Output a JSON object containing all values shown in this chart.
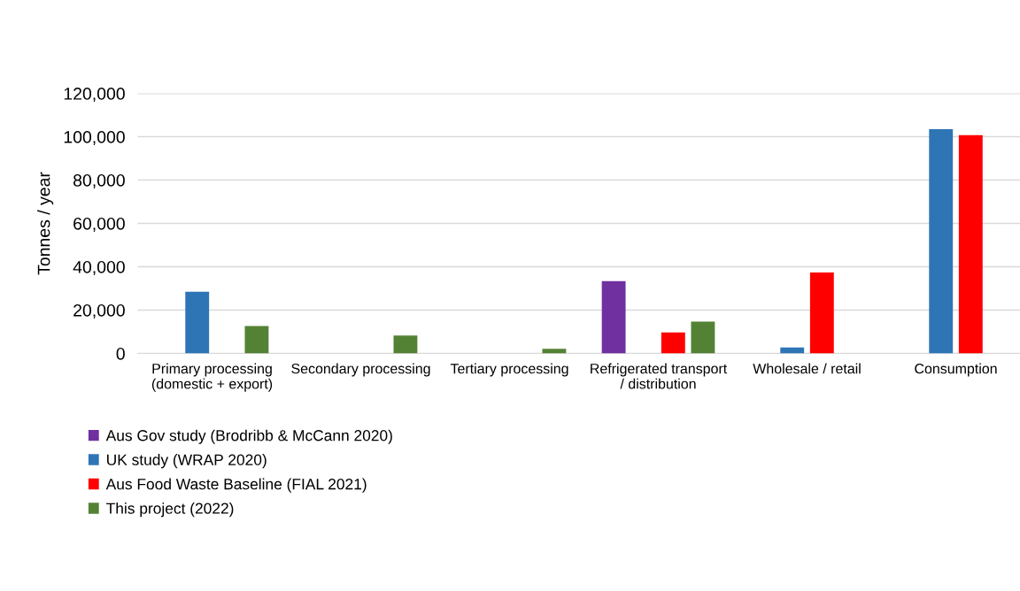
{
  "chart_data": {
    "type": "bar",
    "ylabel": "Tonnes / year",
    "categories": [
      "Primary processing\n(domestic + export)",
      "Secondary processing",
      "Tertiary processing",
      "Refrigerated transport\n/ distribution",
      "Wholesale / retail",
      "Consumption"
    ],
    "series": [
      {
        "name": "Aus Gov study (Brodribb & McCann 2020)",
        "color": "#7030a0",
        "values": [
          null,
          null,
          null,
          33400,
          null,
          null
        ]
      },
      {
        "name": "UK study (WRAP 2020)",
        "color": "#2e75b6",
        "values": [
          28500,
          null,
          null,
          null,
          2700,
          103500
        ]
      },
      {
        "name": "Aus Food Waste Baseline (FIAL 2021)",
        "color": "#ff0000",
        "values": [
          null,
          null,
          null,
          9700,
          37300,
          100700
        ]
      },
      {
        "name": "This project (2022)",
        "color": "#548235",
        "values": [
          12600,
          8300,
          2100,
          14700,
          null,
          null
        ]
      }
    ],
    "ylim": [
      0,
      120000
    ],
    "yticks": [
      {
        "value": 0,
        "label": "0"
      },
      {
        "value": 20000,
        "label": "20,000"
      },
      {
        "value": 40000,
        "label": "40,000"
      },
      {
        "value": 60000,
        "label": "60,000"
      },
      {
        "value": 80000,
        "label": "80,000"
      },
      {
        "value": 100000,
        "label": "100,000"
      },
      {
        "value": 120000,
        "label": "120,000"
      }
    ],
    "grid": "y",
    "legend": "bottom left"
  }
}
